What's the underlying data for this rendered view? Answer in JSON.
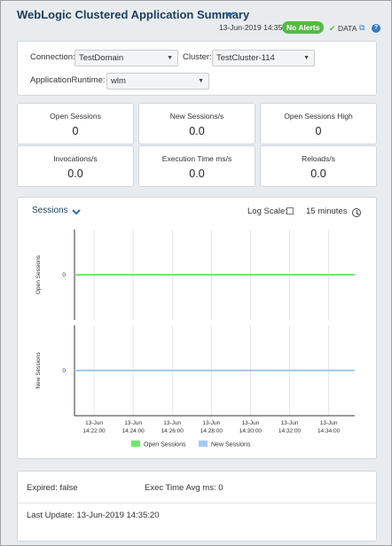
{
  "header": {
    "title": "WebLogic Clustered Application Summary",
    "date": "13-Jun-2019 14:35",
    "alerts_badge": "No Alerts",
    "data_label": "DATA"
  },
  "filters": {
    "connection_label": "Connection:",
    "connection_value": "TestDomain",
    "cluster_label": "Cluster:",
    "cluster_value": "TestCluster-114",
    "runtime_label": "ApplicationRuntime:",
    "runtime_value": "wlm"
  },
  "tiles": [
    {
      "label": "Open Sessions",
      "value": "0"
    },
    {
      "label": "New Sessions/s",
      "value": "0.0"
    },
    {
      "label": "Open Sessions High",
      "value": "0"
    },
    {
      "label": "Invocations/s",
      "value": "0.0"
    },
    {
      "label": "Execution Time ms/s",
      "value": "0.0"
    },
    {
      "label": "Reloads/s",
      "value": "0.0"
    }
  ],
  "chart_header": {
    "selector_label": "Sessions",
    "log_scale_label": "Log Scale:",
    "log_scale_checked": false,
    "time_range": "15 minutes"
  },
  "chart_data": [
    {
      "type": "line",
      "ylabel": "Open Sessions",
      "yticks": [
        "0"
      ],
      "x": [
        "13-Jun 14:21:00",
        "13-Jun 14:35:20"
      ],
      "series": [
        {
          "name": "Open Sessions",
          "values": [
            0,
            0
          ],
          "color": "#6ee86e"
        }
      ]
    },
    {
      "type": "line",
      "ylabel": "New Sessions",
      "yticks": [
        "0"
      ],
      "x": [
        "13-Jun 14:21:00",
        "13-Jun 14:35:20"
      ],
      "xticks": [
        [
          "13-Jun",
          "14:22:00"
        ],
        [
          "13-Jun",
          "14:24:00"
        ],
        [
          "13-Jun",
          "14:26:00"
        ],
        [
          "13-Jun",
          "14:28:00"
        ],
        [
          "13-Jun",
          "14:30:00"
        ],
        [
          "13-Jun",
          "14:32:00"
        ],
        [
          "13-Jun",
          "14:34:00"
        ]
      ],
      "series": [
        {
          "name": "New Sessions",
          "values": [
            0,
            0
          ],
          "color": "#a7c9f0"
        }
      ]
    }
  ],
  "legend": [
    {
      "name": "Open Sessions",
      "color": "#6ee86e"
    },
    {
      "name": "New Sessions",
      "color": "#a7c9f0"
    }
  ],
  "info": {
    "expired_label": "Expired:",
    "expired_value": "false",
    "exec_time_label": "Exec Time Avg ms:",
    "exec_time_value": "0",
    "last_update_label": "Last Update:",
    "last_update_value": "13-Jun-2019 14:35:20"
  }
}
